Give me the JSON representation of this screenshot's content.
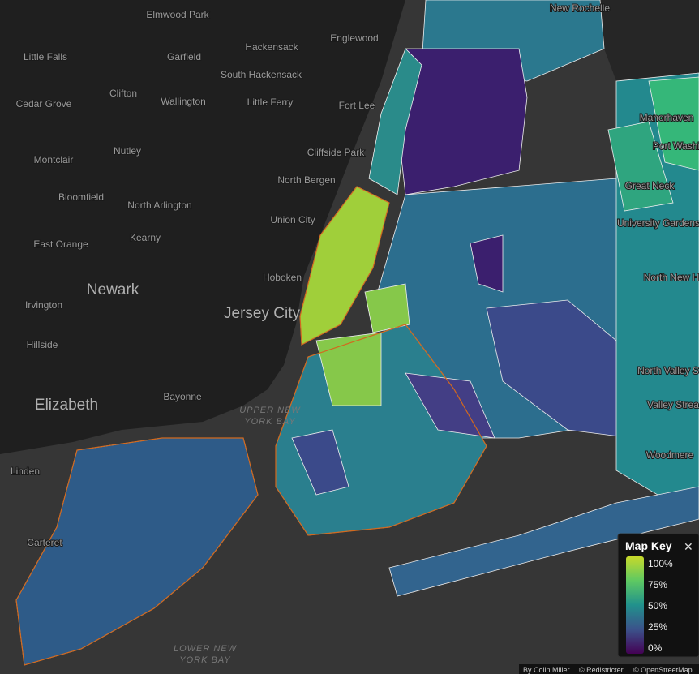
{
  "places": [
    "Elmwood Park",
    "Little Falls",
    "Garfield",
    "Hackensack",
    "Englewood",
    "New Rochelle",
    "South Hackensack",
    "Clifton",
    "Cedar Grove",
    "Wallington",
    "Little Ferry",
    "Fort Lee",
    "Manorhaven",
    "Nutley",
    "Cliffside Park",
    "Port Washi",
    "Montclair",
    "North Bergen",
    "Great Neck",
    "Bloomfield",
    "North Arlington",
    "Union City",
    "University Gardens",
    "East Orange",
    "Kearny",
    "Hoboken",
    "North New H",
    "Irvington",
    "Hillside",
    "North Valley S",
    "Bayonne",
    "Valley Strea",
    "Woodmere",
    "Linden",
    "Carteret"
  ],
  "major_places": [
    "Newark",
    "Jersey City",
    "Elizabeth"
  ],
  "water": [
    [
      "UPPER NEW",
      "YORK BAY"
    ],
    [
      "LOWER NEW",
      "YORK BAY"
    ]
  ],
  "map_key": {
    "title": "Map Key",
    "close": "✕",
    "ticks": [
      {
        "value": 100,
        "label": "100%"
      },
      {
        "value": 75,
        "label": "75%"
      },
      {
        "value": 50,
        "label": "50%"
      },
      {
        "value": 25,
        "label": "25%"
      },
      {
        "value": 0,
        "label": "0%"
      }
    ],
    "range": [
      0,
      100
    ],
    "colors": [
      "#440154",
      "#3b528b",
      "#21918c",
      "#5ec962",
      "#c8d92a"
    ]
  },
  "attribution": [
    "By Colin Miller",
    "© Redistricter",
    "© OpenStreetMap"
  ]
}
